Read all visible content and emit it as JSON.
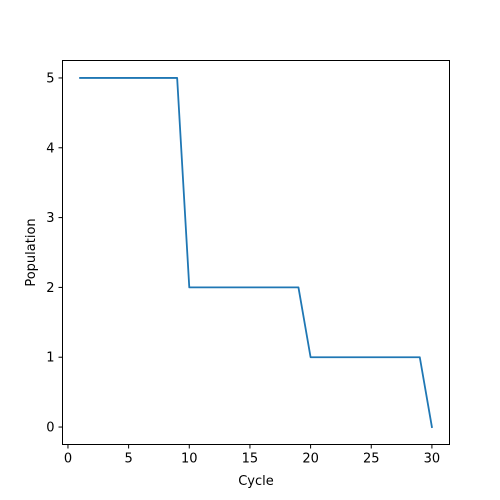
{
  "chart_data": {
    "type": "line",
    "title": "",
    "xlabel": "Cycle",
    "ylabel": "Population",
    "xlim": [
      -0.45,
      31.45
    ],
    "ylim": [
      -0.25,
      5.25
    ],
    "xticks": [
      0,
      5,
      10,
      15,
      20,
      25,
      30
    ],
    "yticks": [
      0,
      1,
      2,
      3,
      4,
      5
    ],
    "grid": false,
    "legend": "none",
    "series": [
      {
        "color": "#1f77b4",
        "x": [
          1,
          2,
          3,
          4,
          5,
          6,
          7,
          8,
          9,
          10,
          11,
          12,
          13,
          14,
          15,
          16,
          17,
          18,
          19,
          20,
          21,
          22,
          23,
          24,
          25,
          26,
          27,
          28,
          29,
          30
        ],
        "y": [
          5,
          5,
          5,
          5,
          5,
          5,
          5,
          5,
          5,
          2,
          2,
          2,
          2,
          2,
          2,
          2,
          2,
          2,
          2,
          1,
          1,
          1,
          1,
          1,
          1,
          1,
          1,
          1,
          1,
          0
        ]
      }
    ]
  }
}
